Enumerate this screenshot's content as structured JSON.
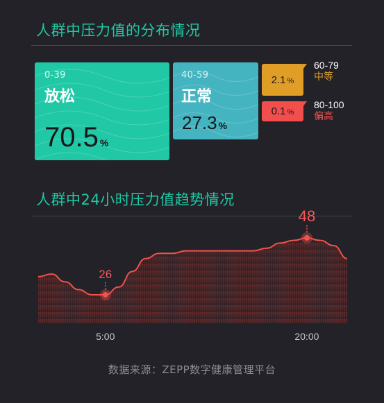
{
  "sections": {
    "distribution_title": "人群中压力值的分布情况",
    "trend_title": "人群中24小时压力值趋势情况"
  },
  "distribution": {
    "relax": {
      "range": "0-39",
      "name": "放松",
      "value": "70.5",
      "unit": "%",
      "color": "#21c8a6"
    },
    "normal": {
      "range": "40-59",
      "name": "正常",
      "value": "27.3",
      "unit": "%",
      "color": "#45b4c1"
    },
    "moderate": {
      "range": "60-79",
      "name": "中等",
      "value": "2.1",
      "unit": "%",
      "color": "#e09e26"
    },
    "high": {
      "range": "80-100",
      "name": "偏高",
      "value": "0.1",
      "unit": "%",
      "color": "#f24f4c"
    }
  },
  "chart_data": {
    "type": "area",
    "title": "人群中24小时压力值趋势情况",
    "x": [
      0,
      1,
      2,
      3,
      4,
      5,
      6,
      7,
      8,
      9,
      10,
      11,
      12,
      13,
      14,
      15,
      16,
      17,
      18,
      19,
      20,
      21,
      22,
      23
    ],
    "values": [
      33,
      34,
      31,
      28,
      26,
      26,
      29,
      35,
      40,
      42,
      42,
      43,
      43,
      43,
      43,
      43,
      43,
      44,
      46,
      47,
      48,
      47,
      45,
      40
    ],
    "xticks": [
      {
        "x": 5,
        "label": "5:00"
      },
      {
        "x": 20,
        "label": "20:00"
      }
    ],
    "annotations": [
      {
        "x": 5,
        "value": "26"
      },
      {
        "x": 20,
        "value": "48"
      }
    ],
    "line_color": "#f0524c"
  },
  "source": "数据来源：ZEPP数字健康管理平台"
}
